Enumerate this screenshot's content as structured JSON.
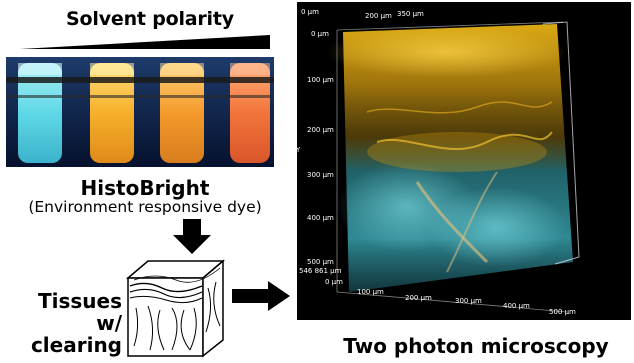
{
  "top_label": "Solvent polarity",
  "dye": {
    "name": "HistoBright",
    "subtitle": "(Environment responsive dye)"
  },
  "tissue": {
    "line1": "Tissues",
    "line2": "w/ clearing"
  },
  "microscopy": {
    "caption": "Two photon microscopy",
    "axis_labels_top": [
      "0 µm",
      "200 µm",
      "350 µm"
    ],
    "axis_labels_left": [
      "0 µm",
      "100 µm",
      "200 µm",
      "300 µm",
      "400 µm",
      "500 µm",
      "546 861 µm"
    ],
    "axis_labels_bottom": [
      "0 µm",
      "100 µm",
      "200 µm",
      "300 µm",
      "400 µm",
      "500 µm"
    ],
    "axis_side": "Y"
  },
  "colors": {
    "tube_colors": [
      "#5fd8e6",
      "#f6b02a",
      "#f49a2b",
      "#f2743a"
    ],
    "photo_bg": "#0a1e4a",
    "micro_yellow": "#e8b416",
    "micro_cyan": "#3fb6c4"
  }
}
